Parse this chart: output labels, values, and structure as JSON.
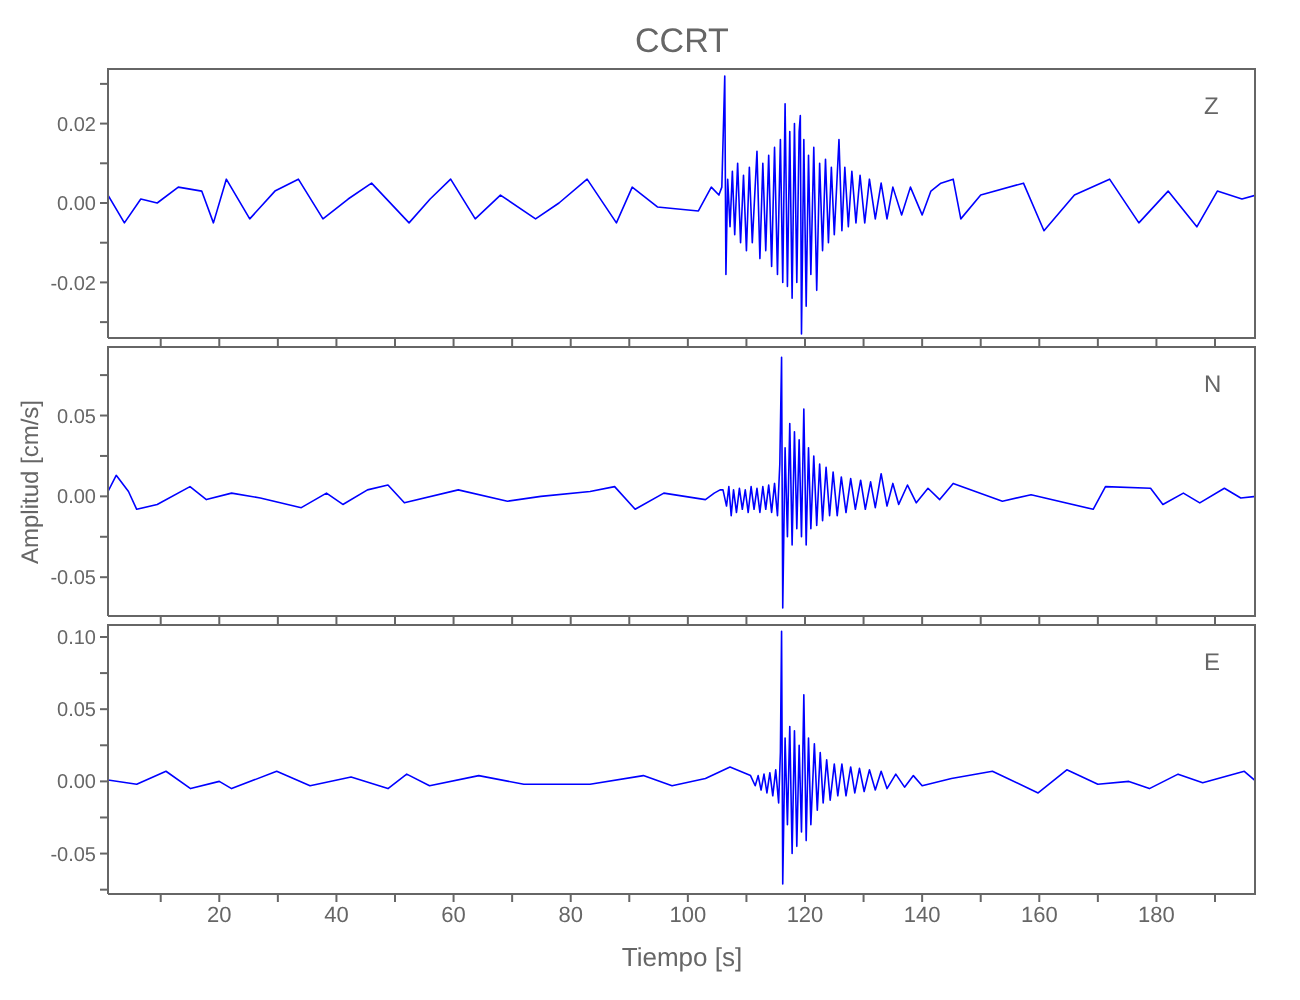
{
  "chart_data": [
    {
      "type": "line",
      "title": "CCRT",
      "annotations": [
        "Z"
      ],
      "color": "#0000ff",
      "tick_labels": "y",
      "xlim": [
        1,
        197
      ],
      "xticks": [
        {
          "value": 10,
          "label": null
        },
        20,
        {
          "value": 30,
          "label": null
        },
        40,
        {
          "value": 50,
          "label": null
        },
        60,
        {
          "value": 70,
          "label": null
        },
        80,
        {
          "value": 90,
          "label": null
        },
        100,
        {
          "value": 110,
          "label": null
        },
        120,
        {
          "value": 130,
          "label": null
        },
        140,
        {
          "value": 150,
          "label": null
        },
        160,
        {
          "value": 170,
          "label": null
        },
        180,
        {
          "value": 190,
          "label": null
        }
      ],
      "ylim": [
        -0.034,
        0.034
      ],
      "yticks": [
        {
          "value": -0.03,
          "label": null
        },
        {
          "value": -0.02,
          "label": "-0.02"
        },
        {
          "value": -0.01,
          "label": null
        },
        {
          "value": 0,
          "label": "0.00"
        },
        {
          "value": 0.01,
          "label": null
        },
        {
          "value": 0.02,
          "label": "0.02"
        },
        {
          "value": 0.03,
          "label": null
        }
      ],
      "x": [
        1,
        3.8,
        6.6,
        9.4,
        13,
        17,
        19,
        21.2,
        25.2,
        29.5,
        33.5,
        37.7,
        42,
        46,
        52.4,
        56,
        59.5,
        63.7,
        68,
        74,
        78,
        82.8,
        87.8,
        90.5,
        94.8,
        101.8,
        104,
        105.3,
        105.8,
        106.3,
        106.5,
        106.8,
        107.2,
        107.6,
        108,
        108.5,
        109,
        109.5,
        110,
        110.5,
        111,
        111.8,
        112.3,
        112.8,
        113.3,
        113.8,
        114.3,
        114.8,
        115.3,
        115.8,
        116.2,
        116.6,
        117,
        117.4,
        117.8,
        118.2,
        118.6,
        119,
        119.2,
        119.4,
        119.8,
        120.2,
        120.6,
        121,
        121.5,
        122,
        122.5,
        123,
        123.5,
        124,
        124.5,
        125,
        125.8,
        126.3,
        126.8,
        127.4,
        128,
        128.7,
        129.4,
        130.2,
        131,
        132,
        133,
        134,
        135,
        136.5,
        138,
        140,
        141.5,
        143.2,
        145.3,
        146.6,
        150,
        157.3,
        160.8,
        166,
        172,
        177,
        182,
        186.9,
        190.4,
        194.6,
        197
      ],
      "values": [
        0.002,
        -0.005,
        0.001,
        0,
        0.004,
        0.003,
        -0.005,
        0.006,
        -0.004,
        0.003,
        0.006,
        -0.004,
        0.001,
        0.005,
        -0.005,
        0.001,
        0.006,
        -0.004,
        0.002,
        -0.004,
        0,
        0.006,
        -0.005,
        0.004,
        -0.001,
        -0.002,
        0.004,
        0.002,
        0.004,
        0.032,
        -0.018,
        0.006,
        -0.006,
        0.008,
        -0.008,
        0.01,
        -0.01,
        0.007,
        -0.012,
        0.009,
        -0.01,
        0.013,
        -0.014,
        0.01,
        -0.012,
        0.012,
        -0.016,
        0.014,
        -0.018,
        0.016,
        -0.02,
        0.025,
        -0.021,
        0.018,
        -0.024,
        0.02,
        -0.02,
        0.018,
        0.022,
        -0.033,
        0.016,
        -0.026,
        0.012,
        -0.018,
        0.014,
        -0.022,
        0.01,
        -0.012,
        0.011,
        -0.01,
        0.009,
        -0.008,
        0.016,
        -0.007,
        0.009,
        -0.006,
        0.008,
        -0.005,
        0.007,
        -0.005,
        0.006,
        -0.004,
        0.005,
        -0.004,
        0.004,
        -0.003,
        0.004,
        -0.003,
        0.003,
        0.005,
        0.006,
        -0.004,
        0.002,
        0.005,
        -0.007,
        0.002,
        0.006,
        -0.005,
        0.003,
        -0.006,
        0.003,
        0.001,
        0.002
      ]
    },
    {
      "type": "line",
      "ylabel": "Amplitud [cm/s]",
      "annotations": [
        "N"
      ],
      "color": "#0000ff",
      "tick_labels": "y",
      "xlim": [
        1,
        197
      ],
      "xticks": [
        {
          "value": 10,
          "label": null
        },
        20,
        {
          "value": 30,
          "label": null
        },
        40,
        {
          "value": 50,
          "label": null
        },
        60,
        {
          "value": 70,
          "label": null
        },
        80,
        {
          "value": 90,
          "label": null
        },
        100,
        {
          "value": 110,
          "label": null
        },
        120,
        {
          "value": 130,
          "label": null
        },
        140,
        {
          "value": 150,
          "label": null
        },
        160,
        {
          "value": 170,
          "label": null
        },
        180,
        {
          "value": 190,
          "label": null
        }
      ],
      "ylim": [
        -0.074,
        0.093
      ],
      "yticks": [
        {
          "value": -0.05,
          "label": "-0.05"
        },
        {
          "value": -0.025,
          "label": null
        },
        {
          "value": 0,
          "label": "0.00"
        },
        {
          "value": 0.025,
          "label": null
        },
        {
          "value": 0.05,
          "label": "0.05"
        },
        {
          "value": 0.075,
          "label": null
        }
      ],
      "x": [
        1,
        2.4,
        4.5,
        5.9,
        9.4,
        15,
        17.8,
        22.1,
        27,
        34,
        38.3,
        41.1,
        45.3,
        48.8,
        51.6,
        60.8,
        69.2,
        74.9,
        83.3,
        87.5,
        91,
        95.9,
        103,
        104.5,
        105.5,
        106,
        106.6,
        107,
        107.4,
        107.8,
        108.3,
        108.8,
        109.3,
        109.8,
        110.3,
        110.8,
        111.3,
        111.8,
        112.3,
        112.8,
        113.3,
        113.8,
        114.3,
        114.8,
        115.3,
        115.7,
        116,
        116.2,
        116.6,
        117,
        117.4,
        117.8,
        118.2,
        118.6,
        119,
        119.4,
        119.8,
        120.2,
        120.6,
        121,
        121.5,
        122,
        122.5,
        123,
        123.6,
        124.2,
        124.8,
        125.5,
        126.2,
        127,
        127.8,
        128.6,
        129.5,
        130.3,
        131.2,
        132,
        133,
        134,
        135,
        136,
        137.5,
        139,
        141,
        143,
        145.3,
        153.7,
        158.6,
        169.2,
        171.3,
        179,
        181.1,
        184.6,
        187.4,
        191.6,
        194.4,
        197
      ],
      "values": [
        0.003,
        0.013,
        0.003,
        -0.008,
        -0.005,
        0.006,
        -0.002,
        0.002,
        -0.001,
        -0.007,
        0.002,
        -0.005,
        0.004,
        0.007,
        -0.004,
        0.004,
        -0.003,
        0,
        0.003,
        0.006,
        -0.008,
        0.002,
        -0.002,
        0.002,
        0.004,
        0.004,
        -0.006,
        0.006,
        -0.012,
        0.004,
        -0.01,
        0.005,
        -0.008,
        0.004,
        -0.01,
        0.006,
        -0.008,
        0.005,
        -0.01,
        0.006,
        -0.008,
        0.007,
        -0.01,
        0.008,
        -0.012,
        0.02,
        0.086,
        -0.069,
        0.03,
        -0.025,
        0.045,
        -0.03,
        0.04,
        -0.02,
        0.035,
        -0.025,
        0.054,
        -0.03,
        0.03,
        -0.02,
        0.025,
        -0.018,
        0.02,
        -0.015,
        0.018,
        -0.012,
        0.015,
        -0.012,
        0.012,
        -0.01,
        0.011,
        -0.008,
        0.01,
        -0.008,
        0.009,
        -0.007,
        0.014,
        -0.006,
        0.008,
        -0.005,
        0.007,
        -0.004,
        0.005,
        -0.002,
        0.008,
        -0.003,
        0.001,
        -0.008,
        0.006,
        0.005,
        -0.005,
        0.002,
        -0.004,
        0.005,
        -0.001,
        0
      ]
    },
    {
      "type": "line",
      "xlabel": "Tiempo [s]",
      "annotations": [
        "E"
      ],
      "color": "#0000ff",
      "xlim": [
        1,
        197
      ],
      "xticks": [
        {
          "value": 10,
          "label": null
        },
        20,
        {
          "value": 30,
          "label": null
        },
        40,
        {
          "value": 50,
          "label": null
        },
        60,
        {
          "value": 70,
          "label": null
        },
        80,
        {
          "value": 90,
          "label": null
        },
        100,
        {
          "value": 110,
          "label": null
        },
        120,
        {
          "value": 130,
          "label": null
        },
        140,
        {
          "value": 150,
          "label": null
        },
        160,
        {
          "value": 170,
          "label": null
        },
        180,
        {
          "value": 190,
          "label": null
        }
      ],
      "ylim": [
        -0.078,
        0.109
      ],
      "yticks": [
        {
          "value": -0.075,
          "label": null
        },
        {
          "value": -0.05,
          "label": "-0.05"
        },
        {
          "value": -0.025,
          "label": null
        },
        {
          "value": 0,
          "label": "0.00"
        },
        {
          "value": 0.025,
          "label": null
        },
        {
          "value": 0.05,
          "label": "0.05"
        },
        {
          "value": 0.075,
          "label": null
        },
        {
          "value": 0.1,
          "label": "0.10"
        }
      ],
      "x": [
        1,
        5.9,
        10.9,
        15.1,
        20,
        22.1,
        29.8,
        35.5,
        42.5,
        48.8,
        52,
        55.9,
        64.3,
        72,
        83.3,
        92.4,
        97.3,
        103,
        107.2,
        110.7,
        111.5,
        112,
        112.5,
        113,
        113.5,
        114,
        114.5,
        115,
        115.5,
        115.8,
        116,
        116.2,
        116.6,
        117,
        117.4,
        117.8,
        118.2,
        118.6,
        119,
        119.4,
        119.8,
        120.2,
        120.6,
        121,
        121.6,
        122.1,
        122.6,
        123.1,
        123.7,
        124.3,
        125,
        125.6,
        126.3,
        127,
        127.8,
        128.5,
        129.3,
        130.1,
        131,
        132,
        133,
        134,
        135.5,
        137,
        138.5,
        140,
        145,
        152,
        159.8,
        164.7,
        170,
        175.3,
        178.8,
        183.7,
        187.9,
        195,
        197
      ],
      "values": [
        0.001,
        -0.002,
        0.007,
        -0.005,
        0,
        -0.005,
        0.007,
        -0.003,
        0.003,
        -0.005,
        0.005,
        -0.003,
        0.004,
        -0.002,
        -0.002,
        0.004,
        -0.003,
        0.002,
        0.01,
        0.004,
        -0.003,
        0.004,
        -0.006,
        0.005,
        -0.008,
        0.006,
        -0.01,
        0.008,
        -0.015,
        0.02,
        0.104,
        -0.071,
        0.03,
        -0.03,
        0.038,
        -0.05,
        0.035,
        -0.045,
        0.025,
        -0.035,
        0.06,
        -0.041,
        0.03,
        -0.03,
        0.026,
        -0.02,
        0.02,
        -0.015,
        0.015,
        -0.013,
        0.012,
        -0.01,
        0.012,
        -0.01,
        0.01,
        -0.008,
        0.009,
        -0.007,
        0.008,
        -0.006,
        0.007,
        -0.005,
        0.005,
        -0.004,
        0.004,
        -0.003,
        0.002,
        0.007,
        -0.008,
        0.008,
        -0.002,
        0,
        -0.005,
        0.005,
        -0.001,
        0.007,
        0
      ]
    }
  ]
}
